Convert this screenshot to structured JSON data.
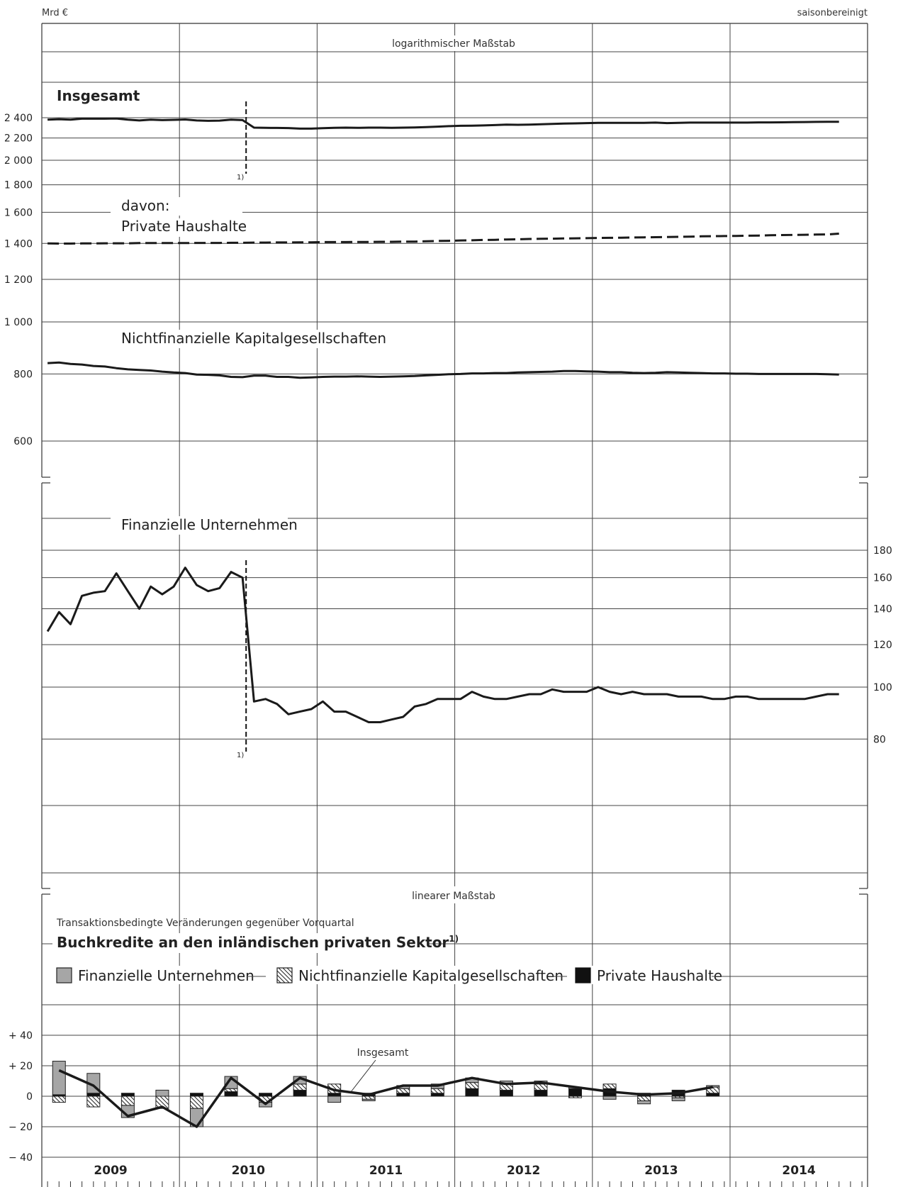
{
  "header": {
    "unit_left": "Mrd €",
    "unit_right": "saisonbereinigt"
  },
  "scale_labels": {
    "log": "logarithmischer Maßstab",
    "linear": "linearer Maßstab"
  },
  "footnote_marker": "1)",
  "colors": {
    "line": "#1a1a1a",
    "financial_bar": "#a6a6a6",
    "households_bar": "#111111",
    "hatch": "#222222"
  },
  "chart_data": [
    {
      "type": "line",
      "title": "Insgesamt",
      "scale": "log",
      "ylim": [
        500,
        2600
      ],
      "y_ticks": [
        {
          "v": 2400,
          "label": "2 400"
        },
        {
          "v": 2200,
          "label": "2 200"
        },
        {
          "v": 2000,
          "label": "2 000"
        },
        {
          "v": 1800,
          "label": "1 800"
        },
        {
          "v": 1600,
          "label": "1 600"
        },
        {
          "v": 1400,
          "label": "1 400"
        },
        {
          "v": 1200,
          "label": "1 200"
        },
        {
          "v": 1000,
          "label": "1 000"
        },
        {
          "v": 800,
          "label": "800"
        },
        {
          "v": 600,
          "label": "600"
        }
      ],
      "x_start": "2009-01",
      "break_month": "2010-06",
      "intro_label": "davon:",
      "series": [
        {
          "name": "Insgesamt",
          "style": "solid",
          "values": [
            2380,
            2385,
            2380,
            2390,
            2390,
            2390,
            2392,
            2380,
            2372,
            2380,
            2375,
            2378,
            2382,
            2372,
            2368,
            2370,
            2380,
            2375,
            2300,
            2298,
            2297,
            2296,
            2290,
            2290,
            2295,
            2298,
            2300,
            2298,
            2300,
            2300,
            2298,
            2300,
            2302,
            2305,
            2310,
            2315,
            2318,
            2320,
            2322,
            2325,
            2330,
            2328,
            2330,
            2333,
            2337,
            2340,
            2342,
            2345,
            2347,
            2347,
            2347,
            2348,
            2348,
            2350,
            2345,
            2347,
            2350,
            2350,
            2350,
            2350,
            2350,
            2350,
            2352,
            2352,
            2353,
            2355,
            2356,
            2357,
            2358,
            2358
          ]
        },
        {
          "name": "Private Haushalte",
          "style": "dashed",
          "values": [
            1400,
            1399,
            1399,
            1400,
            1400,
            1401,
            1401,
            1401,
            1402,
            1402,
            1402,
            1402,
            1402,
            1403,
            1403,
            1403,
            1404,
            1404,
            1405,
            1405,
            1406,
            1406,
            1407,
            1407,
            1408,
            1408,
            1408,
            1409,
            1409,
            1410,
            1410,
            1411,
            1411,
            1413,
            1415,
            1416,
            1418,
            1419,
            1421,
            1422,
            1424,
            1425,
            1427,
            1428,
            1429,
            1430,
            1431,
            1432,
            1433,
            1434,
            1435,
            1436,
            1437,
            1438,
            1439,
            1440,
            1441,
            1443,
            1444,
            1445,
            1446,
            1447,
            1448,
            1450,
            1451,
            1452,
            1453,
            1454,
            1455,
            1460
          ]
        },
        {
          "name": "Nichtfinanzielle Kapitalgesellschaften",
          "style": "solid",
          "values": [
            838,
            840,
            835,
            833,
            828,
            826,
            820,
            816,
            814,
            812,
            808,
            805,
            803,
            798,
            797,
            795,
            790,
            789,
            794,
            794,
            790,
            790,
            787,
            788,
            790,
            791,
            791,
            792,
            791,
            790,
            791,
            792,
            793,
            795,
            797,
            799,
            800,
            802,
            802,
            803,
            803,
            805,
            806,
            807,
            808,
            810,
            810,
            809,
            808,
            806,
            806,
            804,
            803,
            804,
            806,
            805,
            804,
            803,
            802,
            802,
            801,
            801,
            800,
            800,
            800,
            800,
            800,
            800,
            799,
            798
          ]
        }
      ]
    },
    {
      "type": "line",
      "title": "Finanzielle Unternehmen",
      "scale": "log",
      "ylim": [
        60,
        200
      ],
      "y_ticks": [
        {
          "v": 180,
          "label": "180"
        },
        {
          "v": 160,
          "label": "160"
        },
        {
          "v": 140,
          "label": "140"
        },
        {
          "v": 120,
          "label": "120"
        },
        {
          "v": 100,
          "label": "100"
        },
        {
          "v": 80,
          "label": "80"
        }
      ],
      "x_start": "2009-01",
      "break_month": "2010-06",
      "series": [
        {
          "name": "Finanzielle Unternehmen",
          "style": "solid",
          "values": [
            127,
            138,
            131,
            148,
            150,
            151,
            163,
            151,
            140,
            154,
            149,
            154,
            167,
            155,
            151,
            153,
            164,
            160,
            94,
            95,
            93,
            89,
            90,
            91,
            94,
            90,
            90,
            88,
            86,
            86,
            87,
            88,
            92,
            93,
            95,
            95,
            95,
            98,
            96,
            95,
            95,
            96,
            97,
            97,
            99,
            98,
            98,
            98,
            100,
            98,
            97,
            98,
            97,
            97,
            97,
            96,
            96,
            96,
            95,
            95,
            96,
            96,
            95,
            95,
            95,
            95,
            95,
            96,
            97,
            97
          ]
        }
      ]
    },
    {
      "type": "bar",
      "title": "Buchkredite an den inländischen privaten Sektor",
      "title_superscript": "1)",
      "subtitle": "Transaktionsbedingte Veränderungen gegenüber Vorquartal",
      "scale": "linear",
      "ylim": [
        -40,
        80
      ],
      "y_ticks": [
        {
          "v": 40,
          "label": "+ 40"
        },
        {
          "v": 20,
          "label": "+ 20"
        },
        {
          "v": 0,
          "label": "0"
        },
        {
          "v": -20,
          "label": "− 20"
        },
        {
          "v": -40,
          "label": "− 40"
        }
      ],
      "categories": [
        "2009 Q1",
        "2009 Q2",
        "2009 Q3",
        "2009 Q4",
        "2010 Q1",
        "2010 Q2",
        "2010 Q3",
        "2010 Q4",
        "2011 Q1",
        "2011 Q2",
        "2011 Q3",
        "2011 Q4",
        "2012 Q1",
        "2012 Q2",
        "2012 Q3",
        "2012 Q4",
        "2013 Q1",
        "2013 Q2",
        "2013 Q3",
        "2013 Q4"
      ],
      "series": [
        {
          "name": "Finanzielle Unternehmen",
          "values": [
            22,
            13,
            -8,
            4,
            -12,
            8,
            -3,
            5,
            -4,
            -1,
            2,
            3,
            3,
            2,
            2,
            1,
            -2,
            -2,
            -2,
            1
          ]
        },
        {
          "name": "Nichtfinanzielle Kapitalgesellschaften",
          "values": [
            -4,
            -7,
            -6,
            -8,
            -8,
            2,
            -4,
            4,
            6,
            -2,
            3,
            3,
            4,
            4,
            4,
            -1,
            3,
            -3,
            -1,
            4
          ]
        },
        {
          "name": "Private Haushalte",
          "values": [
            1,
            2,
            2,
            0,
            2,
            3,
            2,
            4,
            2,
            2,
            2,
            2,
            5,
            4,
            4,
            5,
            5,
            2,
            4,
            2
          ]
        },
        {
          "name": "Insgesamt",
          "values": [
            17,
            7,
            -13,
            -7,
            -20,
            12,
            -5,
            12,
            4,
            1,
            7,
            7,
            12,
            8,
            9,
            6,
            3,
            1,
            2,
            6
          ]
        }
      ],
      "annotation": "Insgesamt"
    }
  ],
  "x_axis": {
    "years": [
      "2009",
      "2010",
      "2011",
      "2012",
      "2013",
      "2014"
    ]
  }
}
